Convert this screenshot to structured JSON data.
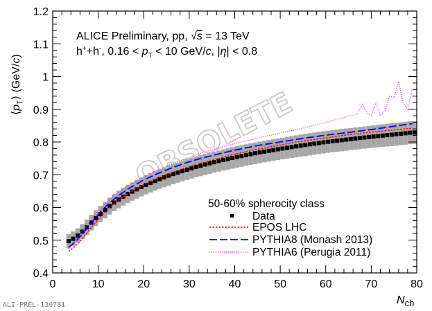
{
  "header": {
    "line1_prefix": "ALICE Preliminary, pp, ",
    "sqrt": "√",
    "s": "s",
    "line1_suffix": " = 13 TeV",
    "line2_a": "h",
    "line2_sup_plus": "+",
    "line2_b": "+h",
    "line2_sup_minus": "-",
    "line2_c": ", 0.16 < ",
    "pt_p": "p",
    "pt_sub": "T",
    "line2_d": " < 10 GeV/",
    "c": "c",
    "line2_e": ", |",
    "eta": "η",
    "line2_f": "| < 0.8"
  },
  "watermark": "OBSOLETE",
  "footer_code": "ALI-PREL-130781",
  "chart_data": {
    "type": "line",
    "ylabel": {
      "open": "⟨",
      "p": "p",
      "sub": "T",
      "close": "⟩",
      "unit": " (GeV/",
      "c": "c",
      "end": ")"
    },
    "xlabel": {
      "main": "N",
      "sub": "ch"
    },
    "xlim": [
      0,
      80
    ],
    "ylim": [
      0.4,
      1.2
    ],
    "xticks": [
      "0",
      "10",
      "20",
      "30",
      "40",
      "50",
      "60",
      "70",
      "80"
    ],
    "yticks": [
      "0.4",
      "0.5",
      "0.6",
      "0.7",
      "0.8",
      "0.9",
      "1",
      "1.1",
      "1.2"
    ],
    "legend": {
      "title": "50-60% spherocity class",
      "position": "bottom-right"
    },
    "series": [
      {
        "name": "Data",
        "style": "markers",
        "color": "#000000",
        "band_color": "#a8a8a8",
        "x": [
          3.5,
          5,
          7,
          9,
          11,
          13,
          15,
          17,
          20,
          23,
          26,
          29,
          32,
          36,
          40,
          45,
          50,
          55,
          60,
          65,
          70,
          75,
          79
        ],
        "values": [
          0.497,
          0.508,
          0.532,
          0.561,
          0.586,
          0.61,
          0.629,
          0.645,
          0.666,
          0.684,
          0.7,
          0.713,
          0.726,
          0.74,
          0.753,
          0.767,
          0.779,
          0.79,
          0.8,
          0.808,
          0.816,
          0.823,
          0.829
        ],
        "syst": [
          0.022,
          0.022,
          0.023,
          0.024,
          0.025,
          0.026,
          0.027,
          0.028,
          0.029,
          0.03,
          0.031,
          0.031,
          0.032,
          0.032,
          0.033,
          0.033,
          0.033,
          0.034,
          0.034,
          0.034,
          0.034,
          0.035,
          0.035
        ]
      },
      {
        "name": "EPOS LHC",
        "style": "dotted",
        "color": "#ff0000",
        "x": [
          3.5,
          5,
          7,
          9,
          11,
          13,
          15,
          17,
          20,
          23,
          26,
          29,
          32,
          36,
          40,
          45,
          50,
          55,
          60,
          65,
          70,
          75,
          79
        ],
        "values": [
          0.465,
          0.482,
          0.512,
          0.548,
          0.579,
          0.605,
          0.627,
          0.646,
          0.67,
          0.689,
          0.706,
          0.72,
          0.733,
          0.748,
          0.763,
          0.778,
          0.791,
          0.803,
          0.813,
          0.822,
          0.83,
          0.837,
          0.842
        ]
      },
      {
        "name": "PYTHIA8 (Monash 2013)",
        "style": "longdash",
        "color": "#0000ff",
        "x": [
          3.5,
          5,
          7,
          9,
          11,
          13,
          15,
          17,
          20,
          23,
          26,
          29,
          32,
          36,
          40,
          45,
          50,
          55,
          60,
          65,
          70,
          75,
          79
        ],
        "values": [
          0.478,
          0.495,
          0.527,
          0.562,
          0.594,
          0.62,
          0.642,
          0.66,
          0.684,
          0.703,
          0.72,
          0.735,
          0.748,
          0.762,
          0.775,
          0.789,
          0.8,
          0.811,
          0.821,
          0.829,
          0.838,
          0.848,
          0.856
        ]
      },
      {
        "name": "PYTHIA6 (Perugia 2011)",
        "style": "fine-dotted",
        "color": "#ff00ff",
        "x": [
          3.5,
          5,
          7,
          9,
          11,
          13,
          15,
          17,
          20,
          23,
          26,
          29,
          32,
          36,
          40,
          45,
          50,
          55,
          60,
          62,
          64,
          65,
          67,
          68,
          69,
          70,
          71,
          72,
          73,
          74,
          75,
          76,
          77,
          78,
          79
        ],
        "values": [
          0.475,
          0.5,
          0.535,
          0.571,
          0.603,
          0.63,
          0.652,
          0.67,
          0.694,
          0.713,
          0.732,
          0.748,
          0.763,
          0.78,
          0.795,
          0.812,
          0.827,
          0.842,
          0.86,
          0.868,
          0.875,
          0.88,
          0.885,
          0.915,
          0.89,
          0.88,
          0.92,
          0.88,
          0.895,
          0.94,
          0.935,
          0.985,
          0.92,
          0.9,
          0.96
        ]
      }
    ]
  }
}
